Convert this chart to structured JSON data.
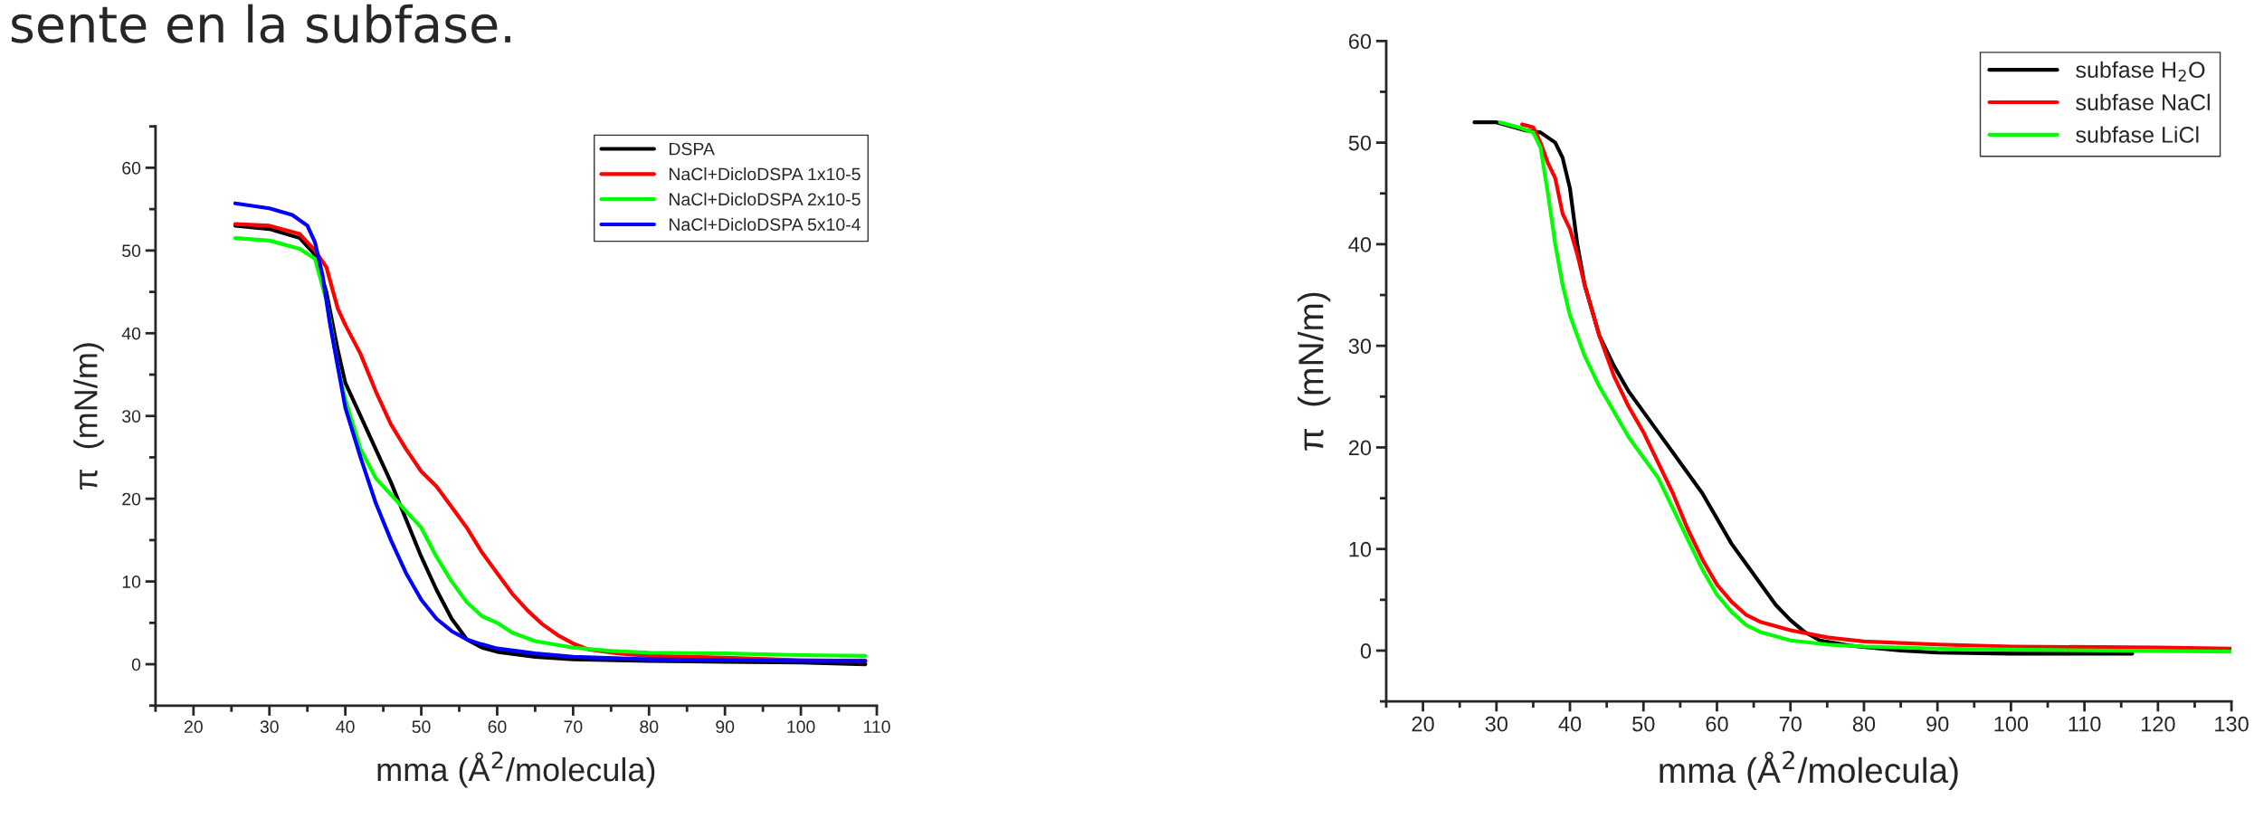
{
  "chart_data": [
    {
      "type": "line",
      "xlabel": "mma (Å$^{2}$/molecula)",
      "ylabel": "π  (mN/m)",
      "xlim": [
        15,
        110
      ],
      "ylim": [
        -5,
        65
      ],
      "xticks": [
        20,
        30,
        40,
        50,
        60,
        70,
        80,
        90,
        100,
        110
      ],
      "yticks": [
        0,
        10,
        20,
        30,
        40,
        50,
        60
      ],
      "legend": "top right",
      "grid": false,
      "annotations": [
        "sente en la subfase."
      ],
      "series": [
        {
          "name": "DSPA",
          "color": "#000000",
          "x": [
            25.5,
            30,
            34,
            36,
            37.5,
            39,
            40,
            42,
            44,
            46,
            48,
            50,
            52,
            54,
            56,
            58,
            60,
            65,
            70,
            80,
            90,
            100,
            108.5
          ],
          "values": [
            53,
            52.6,
            51.5,
            49.5,
            45,
            38,
            34,
            30,
            26,
            22,
            17.5,
            13,
            9,
            5.5,
            3,
            2,
            1.5,
            0.9,
            0.6,
            0.4,
            0.3,
            0.2,
            0
          ]
        },
        {
          "name": "NaCl+DicloDSPA 1x10-5",
          "color": "#ff0000",
          "x": [
            25.5,
            30,
            34,
            36,
            37.5,
            39,
            40,
            42,
            44,
            46,
            48,
            50,
            52,
            54,
            56,
            58,
            60,
            62,
            64,
            66,
            68,
            70,
            72,
            76,
            80,
            90,
            100,
            108.5
          ],
          "values": [
            53.2,
            53,
            52,
            50,
            48,
            43,
            41,
            37.5,
            33,
            29,
            26,
            23.3,
            21.5,
            19,
            16.5,
            13.5,
            11,
            8.5,
            6.5,
            4.8,
            3.5,
            2.5,
            1.8,
            1.3,
            1,
            0.8,
            0.5,
            0.4
          ]
        },
        {
          "name": "NaCl+DicloDSPA 2x10-5",
          "color": "#00ff00",
          "x": [
            25.5,
            30,
            34,
            36,
            37.5,
            39,
            40,
            42,
            44,
            46,
            48,
            50,
            52,
            54,
            56,
            58,
            60,
            62,
            65,
            70,
            75,
            80,
            90,
            100,
            108.5
          ],
          "values": [
            51.5,
            51.2,
            50.2,
            49,
            44,
            36,
            32,
            26,
            22.5,
            20.5,
            18.5,
            16.5,
            13,
            10,
            7.5,
            5.8,
            5,
            3.8,
            2.8,
            2,
            1.6,
            1.4,
            1.3,
            1.1,
            1.0
          ]
        },
        {
          "name": "NaCl+DicloDSPA 5x10-4",
          "color": "#0000ff",
          "x": [
            25.5,
            30,
            33,
            35,
            36,
            37,
            38,
            39,
            40,
            42,
            44,
            46,
            48,
            50,
            52,
            54,
            56,
            58,
            60,
            65,
            70,
            80,
            90,
            100,
            108.5
          ],
          "values": [
            55.7,
            55.1,
            54.3,
            53,
            51,
            47,
            41,
            36,
            31,
            25,
            19.5,
            15,
            11,
            7.8,
            5.5,
            4,
            3,
            2.4,
            1.9,
            1.3,
            0.9,
            0.6,
            0.5,
            0.4,
            0.4
          ]
        }
      ]
    },
    {
      "type": "line",
      "xlabel": "mma (Å$^{2}$/molecula)",
      "ylabel": "π  (mN/m)",
      "xlim": [
        15,
        130
      ],
      "ylim": [
        -5,
        60
      ],
      "xticks": [
        20,
        30,
        40,
        50,
        60,
        70,
        80,
        90,
        100,
        110,
        120,
        130
      ],
      "yticks": [
        0,
        10,
        20,
        30,
        40,
        50,
        60
      ],
      "legend": "top right",
      "grid": false,
      "series": [
        {
          "name": "subfase H$_{2}$O",
          "color": "#000000",
          "x": [
            27,
            30,
            34,
            36,
            38,
            39,
            40,
            41,
            42,
            44,
            46,
            48,
            50,
            52,
            54,
            56,
            58,
            60,
            62,
            64,
            66,
            68,
            70,
            72,
            74,
            78,
            85,
            90,
            100,
            110,
            116.5
          ],
          "values": [
            52,
            52,
            51.2,
            51,
            50,
            48.5,
            45.5,
            40,
            36,
            31,
            28,
            25.5,
            23.5,
            21.5,
            19.5,
            17.5,
            15.5,
            13,
            10.5,
            8.5,
            6.5,
            4.5,
            3,
            1.8,
            1,
            0.5,
            0,
            -0.2,
            -0.3,
            -0.3,
            -0.3
          ]
        },
        {
          "name": "subfase NaCl",
          "color": "#ff0000",
          "x": [
            33.5,
            35,
            36,
            37,
            38,
            39,
            40,
            41,
            42,
            44,
            46,
            48,
            50,
            52,
            54,
            56,
            58,
            60,
            62,
            64,
            66,
            70,
            75,
            80,
            90,
            100,
            120,
            130
          ],
          "values": [
            51.8,
            51.5,
            50,
            48,
            46.5,
            43,
            41.5,
            39,
            36,
            31,
            27,
            24,
            21.5,
            18.5,
            15.5,
            12,
            9,
            6.5,
            4.8,
            3.5,
            2.8,
            2,
            1.3,
            0.9,
            0.6,
            0.4,
            0.3,
            0.2
          ]
        },
        {
          "name": "subfase LiCl",
          "color": "#00ff00",
          "x": [
            30.5,
            33,
            35,
            36,
            37,
            38,
            39,
            40,
            42,
            44,
            46,
            48,
            50,
            52,
            54,
            56,
            58,
            60,
            62,
            64,
            66,
            70,
            75,
            80,
            90,
            100,
            130
          ],
          "values": [
            52,
            51.5,
            51,
            49.5,
            45,
            40,
            36,
            33,
            29,
            26,
            23.5,
            21,
            19,
            17,
            14,
            11,
            8,
            5.5,
            3.8,
            2.5,
            1.8,
            1,
            0.6,
            0.4,
            0.2,
            0.1,
            -0.1
          ]
        }
      ]
    }
  ]
}
